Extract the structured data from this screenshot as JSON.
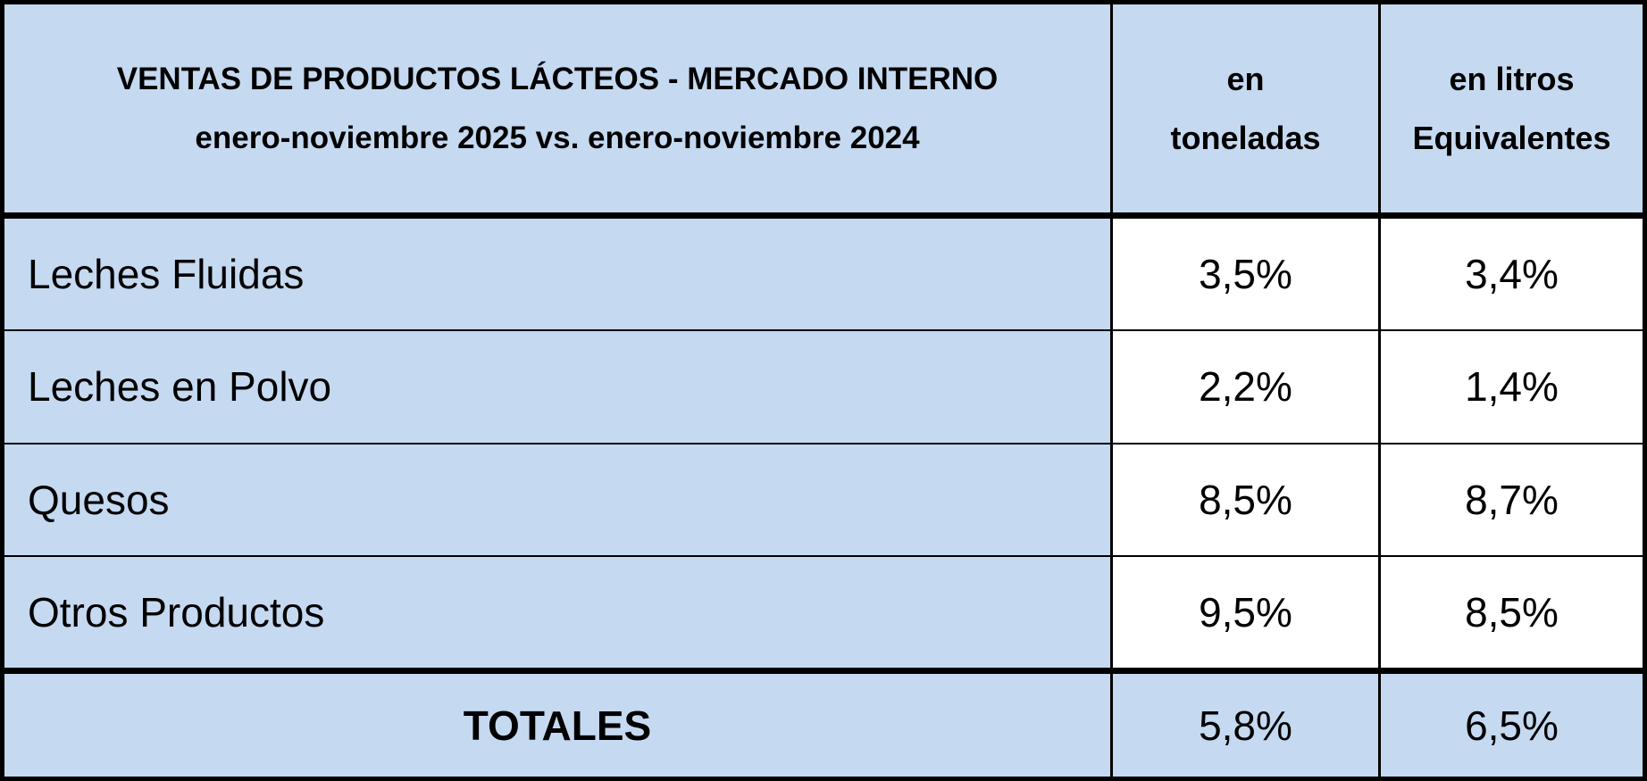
{
  "header": {
    "title_lines": [
      "VENTAS DE PRODUCTOS LÁCTEOS - MERCADO INTERNO",
      "enero-noviembre 2025 vs. enero-noviembre 2024"
    ],
    "col1_lines": [
      "en",
      "toneladas"
    ],
    "col2_lines": [
      "en litros",
      "Equivalentes"
    ]
  },
  "table": {
    "rows": [
      [
        "Leches Fluidas",
        "3,5%",
        "3,4%"
      ],
      [
        "Leches en Polvo",
        "2,2%",
        "1,4%"
      ],
      [
        "Quesos",
        "8,5%",
        "8,7%"
      ],
      [
        "Otros Productos",
        "9,5%",
        "8,5%"
      ]
    ],
    "totals": [
      "TOTALES",
      "5,8%",
      "6,5%"
    ]
  }
}
